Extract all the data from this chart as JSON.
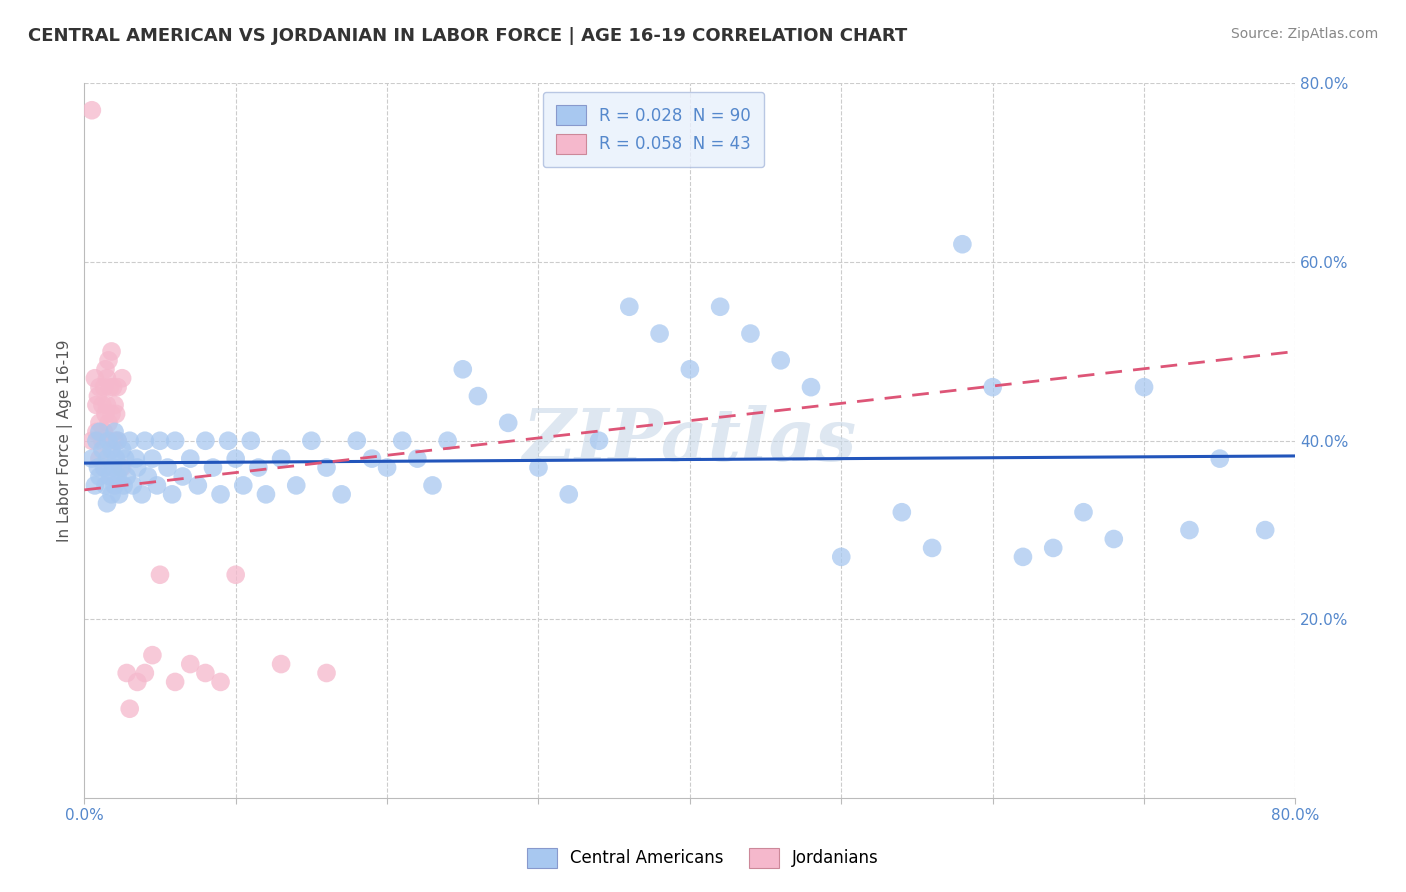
{
  "title": "CENTRAL AMERICAN VS JORDANIAN IN LABOR FORCE | AGE 16-19 CORRELATION CHART",
  "source": "Source: ZipAtlas.com",
  "ylabel": "In Labor Force | Age 16-19",
  "xlim": [
    0.0,
    0.8
  ],
  "ylim": [
    0.0,
    0.8
  ],
  "blue_R": 0.028,
  "blue_N": 90,
  "pink_R": 0.058,
  "pink_N": 43,
  "blue_color": "#a8c8f0",
  "pink_color": "#f5b8cc",
  "blue_line_color": "#2255bb",
  "pink_line_color": "#dd5577",
  "watermark": "ZIPatlas",
  "watermark_color": "#c8d8e8",
  "background_color": "#ffffff",
  "grid_color": "#cccccc",
  "legend_facecolor": "#e8f0fc",
  "legend_edgecolor": "#aabbdd",
  "axis_label_color": "#5588cc",
  "title_color": "#333333",
  "source_color": "#888888",
  "blue_x": [
    0.005,
    0.007,
    0.008,
    0.009,
    0.01,
    0.01,
    0.012,
    0.013,
    0.014,
    0.015,
    0.015,
    0.016,
    0.017,
    0.018,
    0.018,
    0.019,
    0.02,
    0.02,
    0.021,
    0.022,
    0.022,
    0.023,
    0.024,
    0.025,
    0.026,
    0.027,
    0.028,
    0.03,
    0.032,
    0.034,
    0.035,
    0.038,
    0.04,
    0.042,
    0.045,
    0.048,
    0.05,
    0.055,
    0.058,
    0.06,
    0.065,
    0.07,
    0.075,
    0.08,
    0.085,
    0.09,
    0.095,
    0.1,
    0.105,
    0.11,
    0.115,
    0.12,
    0.13,
    0.14,
    0.15,
    0.16,
    0.17,
    0.18,
    0.19,
    0.2,
    0.21,
    0.22,
    0.23,
    0.24,
    0.25,
    0.26,
    0.28,
    0.3,
    0.32,
    0.34,
    0.36,
    0.38,
    0.4,
    0.42,
    0.44,
    0.46,
    0.48,
    0.5,
    0.54,
    0.56,
    0.58,
    0.6,
    0.62,
    0.64,
    0.66,
    0.68,
    0.7,
    0.73,
    0.75,
    0.78
  ],
  "blue_y": [
    0.38,
    0.35,
    0.4,
    0.37,
    0.36,
    0.41,
    0.39,
    0.37,
    0.35,
    0.38,
    0.33,
    0.4,
    0.36,
    0.34,
    0.39,
    0.37,
    0.41,
    0.35,
    0.38,
    0.36,
    0.4,
    0.34,
    0.37,
    0.39,
    0.35,
    0.38,
    0.36,
    0.4,
    0.35,
    0.38,
    0.37,
    0.34,
    0.4,
    0.36,
    0.38,
    0.35,
    0.4,
    0.37,
    0.34,
    0.4,
    0.36,
    0.38,
    0.35,
    0.4,
    0.37,
    0.34,
    0.4,
    0.38,
    0.35,
    0.4,
    0.37,
    0.34,
    0.38,
    0.35,
    0.4,
    0.37,
    0.34,
    0.4,
    0.38,
    0.37,
    0.4,
    0.38,
    0.35,
    0.4,
    0.48,
    0.45,
    0.42,
    0.37,
    0.34,
    0.4,
    0.55,
    0.52,
    0.48,
    0.55,
    0.52,
    0.49,
    0.46,
    0.27,
    0.32,
    0.28,
    0.62,
    0.46,
    0.27,
    0.28,
    0.32,
    0.29,
    0.46,
    0.3,
    0.38,
    0.3
  ],
  "pink_x": [
    0.005,
    0.005,
    0.007,
    0.008,
    0.008,
    0.009,
    0.01,
    0.01,
    0.01,
    0.012,
    0.012,
    0.013,
    0.013,
    0.014,
    0.014,
    0.015,
    0.015,
    0.016,
    0.016,
    0.017,
    0.018,
    0.018,
    0.019,
    0.02,
    0.02,
    0.021,
    0.022,
    0.022,
    0.025,
    0.025,
    0.028,
    0.03,
    0.035,
    0.04,
    0.045,
    0.05,
    0.06,
    0.07,
    0.08,
    0.09,
    0.1,
    0.13,
    0.16
  ],
  "pink_y": [
    0.77,
    0.4,
    0.47,
    0.44,
    0.41,
    0.45,
    0.46,
    0.42,
    0.38,
    0.44,
    0.4,
    0.46,
    0.41,
    0.48,
    0.43,
    0.47,
    0.44,
    0.49,
    0.42,
    0.46,
    0.5,
    0.43,
    0.46,
    0.44,
    0.4,
    0.43,
    0.46,
    0.4,
    0.47,
    0.37,
    0.14,
    0.1,
    0.13,
    0.14,
    0.16,
    0.25,
    0.13,
    0.15,
    0.14,
    0.13,
    0.25,
    0.15,
    0.14
  ],
  "blue_line": {
    "x0": 0.0,
    "y0": 0.375,
    "x1": 0.8,
    "y1": 0.383
  },
  "pink_line": {
    "x0": 0.0,
    "y0": 0.345,
    "x1": 0.8,
    "y1": 0.5
  }
}
